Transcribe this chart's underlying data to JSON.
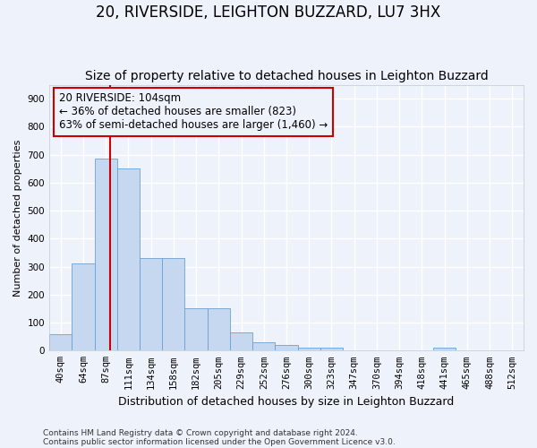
{
  "title": "20, RIVERSIDE, LEIGHTON BUZZARD, LU7 3HX",
  "subtitle": "Size of property relative to detached houses in Leighton Buzzard",
  "xlabel": "Distribution of detached houses by size in Leighton Buzzard",
  "ylabel": "Number of detached properties",
  "footnote1": "Contains HM Land Registry data © Crown copyright and database right 2024.",
  "footnote2": "Contains public sector information licensed under the Open Government Licence v3.0.",
  "bar_labels": [
    "40sqm",
    "64sqm",
    "87sqm",
    "111sqm",
    "134sqm",
    "158sqm",
    "182sqm",
    "205sqm",
    "229sqm",
    "252sqm",
    "276sqm",
    "300sqm",
    "323sqm",
    "347sqm",
    "370sqm",
    "394sqm",
    "418sqm",
    "441sqm",
    "465sqm",
    "488sqm",
    "512sqm"
  ],
  "bar_values": [
    60,
    310,
    685,
    650,
    330,
    330,
    150,
    150,
    65,
    30,
    20,
    10,
    10,
    0,
    0,
    0,
    0,
    10,
    0,
    0,
    0
  ],
  "bar_color": "#c5d8f0",
  "bar_edge_color": "#6a9fd4",
  "ylim": [
    0,
    950
  ],
  "yticks": [
    0,
    100,
    200,
    300,
    400,
    500,
    600,
    700,
    800,
    900
  ],
  "property_label": "20 RIVERSIDE: 104sqm",
  "annotation_line1": "← 36% of detached houses are smaller (823)",
  "annotation_line2": "63% of semi-detached houses are larger (1,460) →",
  "vline_color": "#cc0000",
  "bg_color": "#eef2fb",
  "grid_color": "#ffffff",
  "title_fontsize": 12,
  "subtitle_fontsize": 10,
  "annot_fontsize": 8.5,
  "ylabel_fontsize": 8,
  "xlabel_fontsize": 9,
  "tick_fontsize": 7.5,
  "footnote_fontsize": 6.5
}
